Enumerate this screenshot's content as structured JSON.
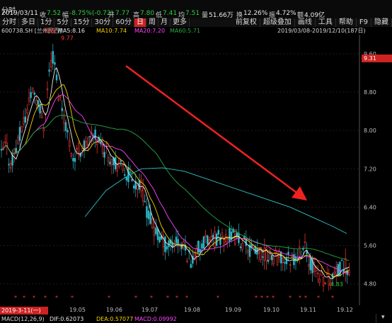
{
  "info_bar": {
    "time_label": "分时",
    "date": "2019/03/11",
    "close_label": "收",
    "close_value": "7.52",
    "change_label": "幅",
    "change_value": "-8.75%(-0.72)",
    "open_label": "开",
    "open_value": "7.77",
    "high_label": "高",
    "high_value": "7.80",
    "low_label": "低",
    "low_value": "7.41",
    "avg_label": "均",
    "avg_value": "7.51",
    "volume_label": "量",
    "volume_value": "51.66万",
    "turnover_label": "换",
    "turnover_value": "12.26%",
    "amplitude_label": "振",
    "amplitude_value": "4.72%",
    "amount_label": "额",
    "amount_value": "4.09亿"
  },
  "period_tabs": [
    {
      "label": "分时",
      "active": false
    },
    {
      "label": "多日",
      "active": false
    },
    {
      "label": "1分",
      "active": false
    },
    {
      "label": "5分",
      "active": false
    },
    {
      "label": "15分",
      "active": false
    },
    {
      "label": "30分",
      "active": false
    },
    {
      "label": "60分",
      "active": false
    },
    {
      "label": "日",
      "active": true
    },
    {
      "label": "周",
      "active": false
    },
    {
      "label": "月",
      "active": false
    },
    {
      "label": "更多",
      "active": false
    }
  ],
  "tool_tabs": [
    "前复权",
    "超级叠加",
    "画线",
    "工具",
    "帮助",
    "F9",
    "隐藏"
  ],
  "ma_bar": {
    "stock": "600738.SH [兰州民百]",
    "period": "日线",
    "ma5": "MA5:8.16",
    "ma10": "MA10:7.74",
    "ma20": "MA20:7.20",
    "ma60": "MA60:5.71",
    "range": "2019/03/08-2019/12/10(187日)"
  },
  "price_axis": {
    "ticks": [
      "9.60",
      "8.80",
      "8.00",
      "7.20",
      "6.40",
      "5.60",
      "4.80"
    ],
    "current_price": "9.31"
  },
  "annotations": {
    "high_label": "9.77",
    "low_label": "4.83"
  },
  "date_axis": {
    "cursor_date": "2019-3-11(一)",
    "ticks": [
      "19.05",
      "19.06",
      "19.07",
      "19.08",
      "19.09",
      "19.10",
      "19.11",
      "19.12"
    ]
  },
  "macd_bar": {
    "label": "MACD(12,26,9)",
    "dif": "DIF:0.62073",
    "dea": "DEA:0.57077",
    "macd": "MACD:0.09992"
  },
  "colors": {
    "up": "#ff3b3b",
    "down": "#2ab7c9",
    "ma5": "#e8e8e8",
    "ma10": "#f5d200",
    "ma20": "#ff44ff",
    "ma60": "#28a745",
    "ma120": "#2fc4c4",
    "trend_arrow": "#ee2222"
  }
}
